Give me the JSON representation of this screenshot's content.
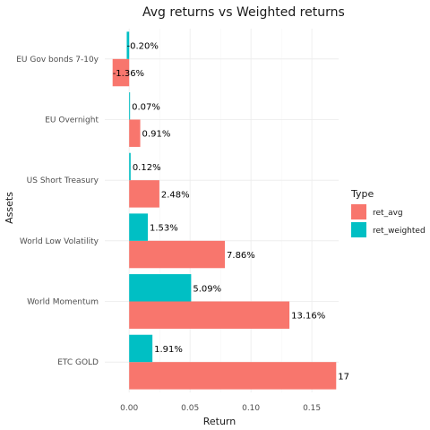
{
  "chart_data": {
    "type": "bar",
    "orientation": "horizontal",
    "title": "Avg returns vs Weighted returns",
    "xlabel": "Return",
    "ylabel": "Assets",
    "xlim": [
      -0.02,
      0.172
    ],
    "x_ticks": [
      0.0,
      0.05,
      0.1,
      0.15
    ],
    "x_tick_labels": [
      "0.00",
      "0.05",
      "0.10",
      "0.15"
    ],
    "categories": [
      "EU Gov bonds 7-10y",
      "EU Overnight",
      "US Short Treasury",
      "World Low Volatility",
      "World Momentum",
      "ETC GOLD"
    ],
    "series": [
      {
        "name": "ret_avg",
        "color": "#F8766D",
        "values": [
          -0.0136,
          0.0091,
          0.0248,
          0.0786,
          0.1316,
          0.17
        ],
        "labels": [
          "-1.36%",
          "0.91%",
          "2.48%",
          "7.86%",
          "13.16%",
          "17"
        ]
      },
      {
        "name": "ret_weighted",
        "color": "#00BFC4",
        "values": [
          -0.002,
          0.0007,
          0.0012,
          0.0153,
          0.0509,
          0.0191
        ],
        "labels": [
          "-0.20%",
          "0.07%",
          "0.12%",
          "1.53%",
          "5.09%",
          "1.91%"
        ]
      }
    ],
    "legend": {
      "title": "Type",
      "position": "right"
    },
    "grid": true
  }
}
